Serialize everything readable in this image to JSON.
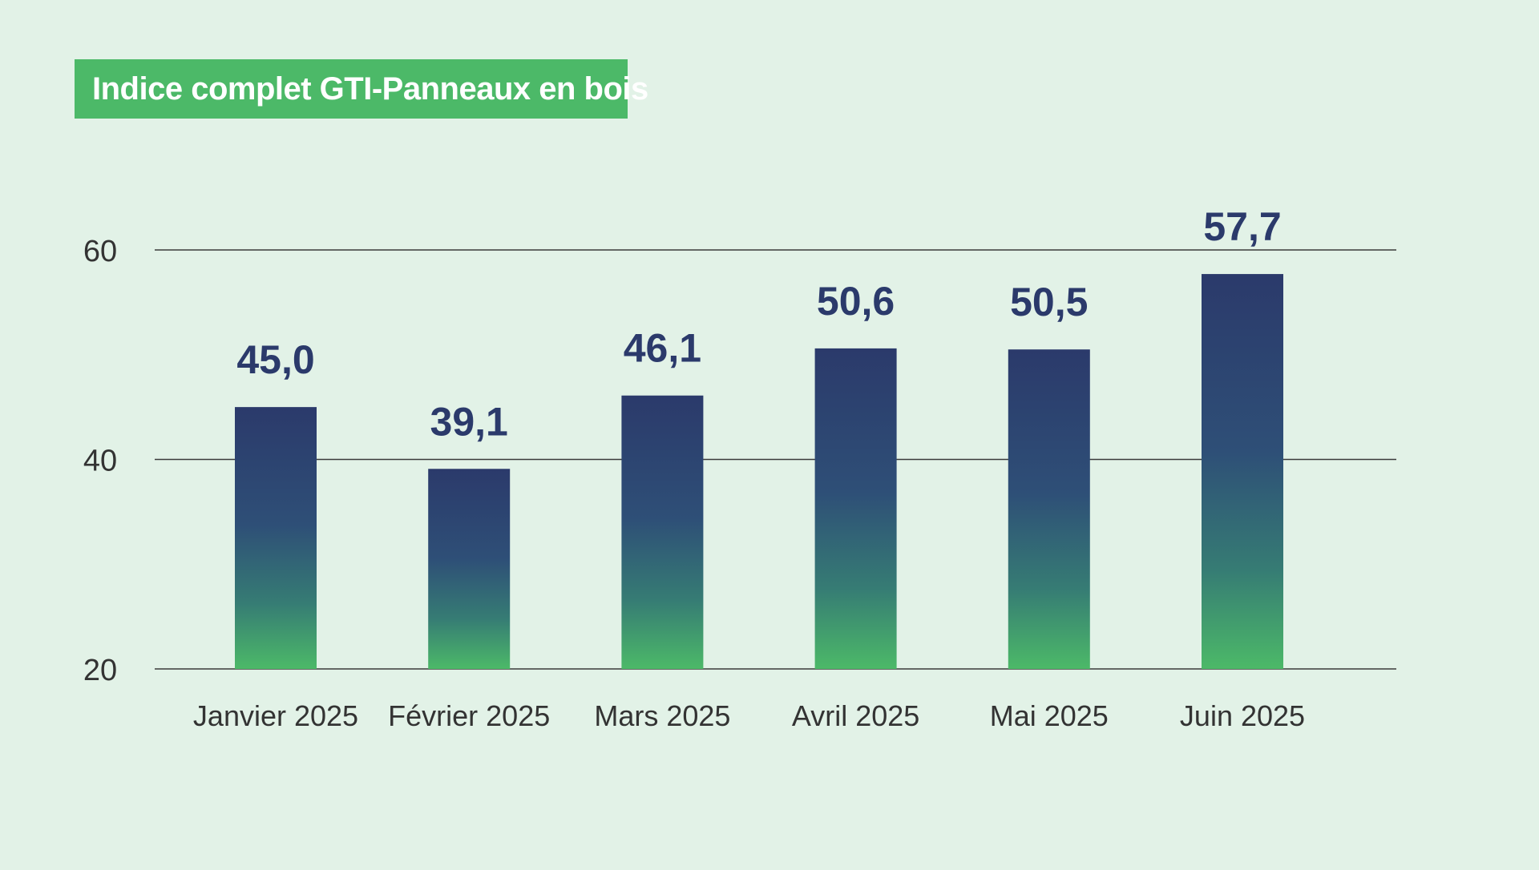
{
  "chart_data": {
    "type": "bar",
    "title": "Indice complet GTI-Panneaux en bois",
    "categories": [
      "Janvier 2025",
      "Février 2025",
      "Mars 2025",
      "Avril 2025",
      "Mai 2025",
      "Juin 2025"
    ],
    "values": [
      45.0,
      39.1,
      46.1,
      50.6,
      50.5,
      57.7
    ],
    "value_labels": [
      "45,0",
      "39,1",
      "46,1",
      "50,6",
      "50,5",
      "57,7"
    ],
    "yticks": [
      20,
      40,
      60
    ],
    "ytick_labels": [
      "20",
      "40",
      "60"
    ],
    "ylim": [
      20,
      60
    ],
    "grid": true,
    "colors": {
      "background": "#e2f2e7",
      "title_bg": "#4cb968",
      "bar_top": "#2b3a6b",
      "bar_bottom": "#4cb968",
      "label": "#2b3a6b",
      "axis_text": "#333333",
      "grid": "#3a3a3a"
    }
  }
}
